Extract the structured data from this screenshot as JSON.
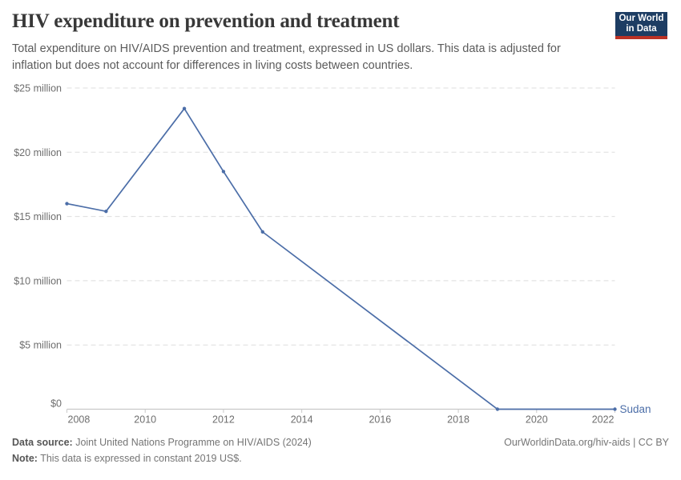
{
  "header": {
    "title": "HIV expenditure on prevention and treatment",
    "subtitle": "Total expenditure on HIV/AIDS prevention and treatment, expressed in US dollars. This data is adjusted for inflation but does not account for differences in living costs between countries.",
    "logo": {
      "line1": "Our World",
      "line2": "in Data",
      "bg_color": "#1d3d63",
      "bar_color": "#bb3225"
    }
  },
  "chart_data": {
    "type": "line",
    "title": "HIV expenditure on prevention and treatment",
    "xlabel": "",
    "ylabel": "",
    "xlim": [
      2008,
      2022
    ],
    "ylim_million_usd": [
      0,
      25
    ],
    "grid": "horizontal-dashed",
    "legend_position": "end-of-line-label",
    "series": [
      {
        "name": "Sudan",
        "color": "#4c6ea8",
        "x": [
          2008,
          2009,
          2011,
          2012,
          2013,
          2019,
          2022
        ],
        "values_million_usd": [
          16.0,
          15.4,
          23.4,
          18.5,
          13.8,
          0,
          0
        ]
      }
    ],
    "yticks": [
      {
        "v": 0,
        "label": "$0"
      },
      {
        "v": 5,
        "label": "$5 million"
      },
      {
        "v": 10,
        "label": "$10 million"
      },
      {
        "v": 15,
        "label": "$15 million"
      },
      {
        "v": 20,
        "label": "$20 million"
      },
      {
        "v": 25,
        "label": "$25 million"
      }
    ],
    "xticks": [
      {
        "v": 2008,
        "label": "2008"
      },
      {
        "v": 2010,
        "label": "2010"
      },
      {
        "v": 2012,
        "label": "2012"
      },
      {
        "v": 2014,
        "label": "2014"
      },
      {
        "v": 2016,
        "label": "2016"
      },
      {
        "v": 2018,
        "label": "2018"
      },
      {
        "v": 2020,
        "label": "2020"
      },
      {
        "v": 2022,
        "label": "2022"
      }
    ]
  },
  "footer": {
    "data_source_label": "Data source:",
    "data_source_value": " Joint United Nations Programme on HIV/AIDS (2024)",
    "note_label": "Note:",
    "note_value": " This data is expressed in constant 2019 US$.",
    "attribution": "OurWorldinData.org/hiv-aids | CC BY"
  },
  "colors": {
    "line": "#4c6ea8",
    "gridline": "#dedede",
    "axis": "#c9c9c9",
    "tick_text": "#6e6e6e",
    "title_text": "#383838",
    "subtitle_text": "#5b5b5b"
  }
}
